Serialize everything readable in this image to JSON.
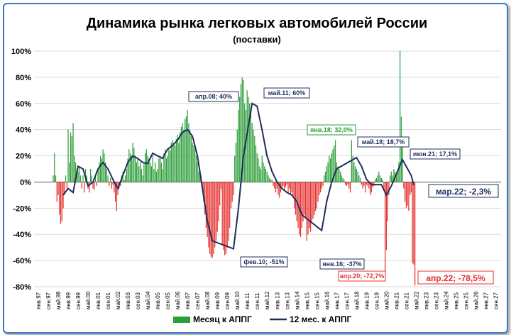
{
  "chart_data": {
    "type": "bar",
    "title": "Динамика рынка легковых автомобилей России",
    "subtitle": "(поставки)",
    "ylim": [
      -80,
      100
    ],
    "yticks": [
      -80,
      -60,
      -40,
      -20,
      0,
      20,
      40,
      60,
      80,
      100
    ],
    "ytick_labels": [
      "-80%",
      "-60%",
      "-40%",
      "-20%",
      "0%",
      "20%",
      "40%",
      "60%",
      "80%",
      "100%"
    ],
    "grid": true,
    "legend_position": "bottom",
    "x_labels": [
      "янв.97",
      "сен.97",
      "май.98",
      "янв.99",
      "сен.99",
      "май.00",
      "янв.01",
      "сен.01",
      "май.02",
      "янв.03",
      "сен.03",
      "май.04",
      "янв.05",
      "сен.05",
      "май.06",
      "янв.07",
      "сен.07",
      "май.08",
      "янв.09",
      "сен.09",
      "май.10",
      "янв.11",
      "сен.11",
      "май.12",
      "янв.13",
      "сен.13",
      "май.14",
      "янв.15",
      "сен.15",
      "май.16",
      "янв.17",
      "сен.17",
      "май.18",
      "янв.19",
      "сен.19",
      "май.20",
      "янв.21",
      "сен.21",
      "май.22",
      "янв.23",
      "сен.23",
      "май.24",
      "янв.25",
      "сен.25",
      "май.26",
      "янв.27",
      "сен.27"
    ],
    "series": [
      {
        "name": "Месяц к АППГ",
        "color": "mixed-green-red",
        "points": [
          [
            "янв.97",
            null
          ],
          [
            "сен.97",
            null
          ],
          [
            "янв.98",
            5
          ],
          [
            "фев.98",
            22
          ],
          [
            "мар.98",
            5
          ],
          [
            "апр.98",
            -15
          ],
          [
            "май.98",
            -10
          ],
          [
            "июн.98",
            -25
          ],
          [
            "июл.98",
            -32
          ],
          [
            "авг.98",
            -30
          ],
          [
            "сен.98",
            -20
          ],
          [
            "окт.98",
            -10
          ],
          [
            "ноя.98",
            5
          ],
          [
            "дек.98",
            -5
          ],
          [
            "янв.99",
            40
          ],
          [
            "фев.99",
            15
          ],
          [
            "мар.99",
            38
          ],
          [
            "апр.99",
            35
          ],
          [
            "май.99",
            45
          ],
          [
            "июн.99",
            20
          ],
          [
            "июл.99",
            15
          ],
          [
            "авг.99",
            10
          ],
          [
            "сен.99",
            8
          ],
          [
            "окт.99",
            12
          ],
          [
            "ноя.99",
            5
          ],
          [
            "дек.99",
            -5
          ],
          [
            "янв.00",
            5
          ],
          [
            "фев.00",
            -8
          ],
          [
            "мар.00",
            10
          ],
          [
            "апр.00",
            5
          ],
          [
            "май.00",
            -5
          ],
          [
            "июн.00",
            -8
          ],
          [
            "июл.00",
            10
          ],
          [
            "авг.00",
            5
          ],
          [
            "сен.00",
            -5
          ],
          [
            "окт.00",
            -6
          ],
          [
            "ноя.00",
            5
          ],
          [
            "дек.00",
            -3
          ],
          [
            "янв.01",
            10
          ],
          [
            "фев.01",
            15
          ],
          [
            "мар.01",
            20
          ],
          [
            "апр.01",
            18
          ],
          [
            "май.01",
            25
          ],
          [
            "июн.01",
            22
          ],
          [
            "июл.01",
            15
          ],
          [
            "авг.01",
            10
          ],
          [
            "сен.01",
            5
          ],
          [
            "окт.01",
            -3
          ],
          [
            "ноя.01",
            3
          ],
          [
            "дек.01",
            -5
          ],
          [
            "янв.02",
            -2
          ],
          [
            "фев.02",
            -8
          ],
          [
            "мар.02",
            -15
          ],
          [
            "апр.02",
            -22
          ],
          [
            "май.02",
            -10
          ],
          [
            "июн.02",
            -5
          ],
          [
            "июл.02",
            -3
          ],
          [
            "авг.02",
            5
          ],
          [
            "сен.02",
            8
          ],
          [
            "окт.02",
            2
          ],
          [
            "ноя.02",
            5
          ],
          [
            "дек.02",
            10
          ],
          [
            "янв.03",
            18
          ],
          [
            "фев.03",
            25
          ],
          [
            "мар.03",
            22
          ],
          [
            "апр.03",
            20
          ],
          [
            "май.03",
            30
          ],
          [
            "июн.03",
            26
          ],
          [
            "июл.03",
            20
          ],
          [
            "авг.03",
            15
          ],
          [
            "сен.03",
            18
          ],
          [
            "окт.03",
            12
          ],
          [
            "ноя.03",
            15
          ],
          [
            "дек.03",
            10
          ],
          [
            "янв.04",
            5
          ],
          [
            "фев.04",
            15
          ],
          [
            "мар.04",
            22
          ],
          [
            "апр.04",
            25
          ],
          [
            "май.04",
            20
          ],
          [
            "июн.04",
            18
          ],
          [
            "июл.04",
            15
          ],
          [
            "авг.04",
            12
          ],
          [
            "сен.04",
            20
          ],
          [
            "окт.04",
            10
          ],
          [
            "ноя.04",
            15
          ],
          [
            "дек.04",
            8
          ],
          [
            "янв.05",
            10
          ],
          [
            "фев.05",
            18
          ],
          [
            "мар.05",
            20
          ],
          [
            "апр.05",
            15
          ],
          [
            "май.05",
            10
          ],
          [
            "июн.05",
            22
          ],
          [
            "июл.05",
            25
          ],
          [
            "авг.05",
            18
          ],
          [
            "сен.05",
            20
          ],
          [
            "окт.05",
            26
          ],
          [
            "ноя.05",
            24
          ],
          [
            "дек.05",
            30
          ],
          [
            "янв.06",
            32
          ],
          [
            "фев.06",
            30
          ],
          [
            "мар.06",
            28
          ],
          [
            "апр.06",
            33
          ],
          [
            "май.06",
            36
          ],
          [
            "июн.06",
            30
          ],
          [
            "июл.06",
            38
          ],
          [
            "авг.06",
            42
          ],
          [
            "сен.06",
            45
          ],
          [
            "окт.06",
            40
          ],
          [
            "ноя.06",
            48
          ],
          [
            "дек.06",
            50
          ],
          [
            "янв.07",
            55
          ],
          [
            "фев.07",
            45
          ],
          [
            "мар.07",
            40
          ],
          [
            "апр.07",
            35
          ],
          [
            "май.07",
            30
          ],
          [
            "июн.07",
            28
          ],
          [
            "июл.07",
            25
          ],
          [
            "авг.07",
            20
          ],
          [
            "сен.07",
            15
          ],
          [
            "окт.07",
            8
          ],
          [
            "ноя.07",
            10
          ],
          [
            "дек.07",
            5
          ],
          [
            "янв.08",
            -5
          ],
          [
            "фев.08",
            -15
          ],
          [
            "мар.08",
            -25
          ],
          [
            "апр.08",
            -35
          ],
          [
            "май.08",
            -42
          ],
          [
            "июн.08",
            -50
          ],
          [
            "июл.08",
            -55
          ],
          [
            "авг.08",
            -57
          ],
          [
            "сен.08",
            -58
          ],
          [
            "окт.08",
            -55
          ],
          [
            "ноя.08",
            -50
          ],
          [
            "дек.08",
            -45
          ],
          [
            "янв.09",
            -38
          ],
          [
            "фев.09",
            -30
          ],
          [
            "мар.09",
            -18
          ],
          [
            "апр.09",
            -5
          ],
          [
            "май.09",
            -30
          ],
          [
            "июн.09",
            null
          ],
          [
            "июл.09",
            null
          ],
          [
            "авг.09",
            null
          ],
          [
            "сен.09",
            null
          ],
          [
            "окт.09",
            null
          ],
          [
            "ноя.09",
            null
          ],
          [
            "дек.09",
            null
          ]
        ]
      },
      {
        "name": "12 мес. к АППГ",
        "color": "#1f2d5e",
        "line_points": [
          [
            "сен.98",
            -10
          ],
          [
            "янв.99",
            -5
          ],
          [
            "май.99",
            -8
          ],
          [
            "сен.99",
            12
          ],
          [
            "янв.00",
            10
          ],
          [
            "май.00",
            -3
          ],
          [
            "сен.00",
            0
          ],
          [
            "янв.01",
            10
          ],
          [
            "май.01",
            15
          ],
          [
            "сен.01",
            10
          ],
          [
            "янв.02",
            2
          ],
          [
            "май.02",
            -5
          ],
          [
            "сен.02",
            5
          ],
          [
            "янв.03",
            15
          ],
          [
            "май.03",
            20
          ],
          [
            "сен.03",
            18
          ],
          [
            "янв.04",
            15
          ],
          [
            "май.04",
            14
          ],
          [
            "сен.04",
            22
          ],
          [
            "янв.05",
            20
          ],
          [
            "май.05",
            18
          ],
          [
            "сен.05",
            25
          ],
          [
            "янв.06",
            28
          ],
          [
            "май.06",
            32
          ],
          [
            "сен.06",
            38
          ],
          [
            "янв.07",
            40
          ],
          [
            "май.07",
            35
          ],
          [
            "сен.07",
            20
          ],
          [
            "янв.08",
            -5
          ],
          [
            "май.08",
            -30
          ],
          [
            "сен.08",
            -45
          ],
          [
            "фев.10",
            -51
          ],
          [
            "июн.10",
            -20
          ],
          [
            "окт.10",
            20
          ],
          [
            "май.11",
            60
          ],
          [
            "сен.11",
            58
          ],
          [
            "янв.12",
            40
          ],
          [
            "май.12",
            20
          ],
          [
            "сен.12",
            8
          ],
          [
            "янв.13",
            0
          ],
          [
            "май.13",
            -5
          ],
          [
            "сен.13",
            -8
          ],
          [
            "янв.14",
            -10
          ],
          [
            "май.14",
            -15
          ],
          [
            "сен.14",
            -25
          ],
          [
            "янв.16",
            -37
          ],
          [
            "май.16",
            -15
          ],
          [
            "сен.16",
            0
          ],
          [
            "янв.17",
            10
          ],
          [
            "май.18",
            18.7
          ],
          [
            "сен.18",
            12
          ],
          [
            "янв.19",
            2
          ],
          [
            "май.19",
            -2
          ],
          [
            "сен.19",
            -2
          ],
          [
            "янв.20",
            -2
          ],
          [
            "май.20",
            -10
          ],
          [
            "сен.20",
            -3
          ],
          [
            "июн.21",
            17.1
          ],
          [
            "янв.22",
            5
          ],
          [
            "мар.22",
            -2.3
          ]
        ]
      }
    ],
    "annotations": [
      {
        "text": "апр.08; 40%",
        "color": "#1f2d5e"
      },
      {
        "text": "май.11; 60%",
        "color": "#1f2d5e"
      },
      {
        "text": "фев.10; -51%",
        "color": "#1f2d5e"
      },
      {
        "text": "янв.18; 32,0%",
        "color": "#2e9e3a"
      },
      {
        "text": "май.18; 18,7%",
        "color": "#1f2d5e"
      },
      {
        "text": "июн.21; 17,1%",
        "color": "#1f2d5e"
      },
      {
        "text": "мар.22; -2,3%",
        "color": "#1f2d5e"
      },
      {
        "text": "янв.16; -37%",
        "color": "#1f2d5e"
      },
      {
        "text": "апр.20; -72,7%",
        "color": "#e5312d"
      },
      {
        "text": "апр.22; -78,5%",
        "color": "#e5312d"
      }
    ],
    "legend": [
      {
        "label": "Месяц к АППГ",
        "color": "#2e9e3a"
      },
      {
        "label": "12 мес. к АППГ",
        "color": "#1f2d5e"
      }
    ]
  }
}
